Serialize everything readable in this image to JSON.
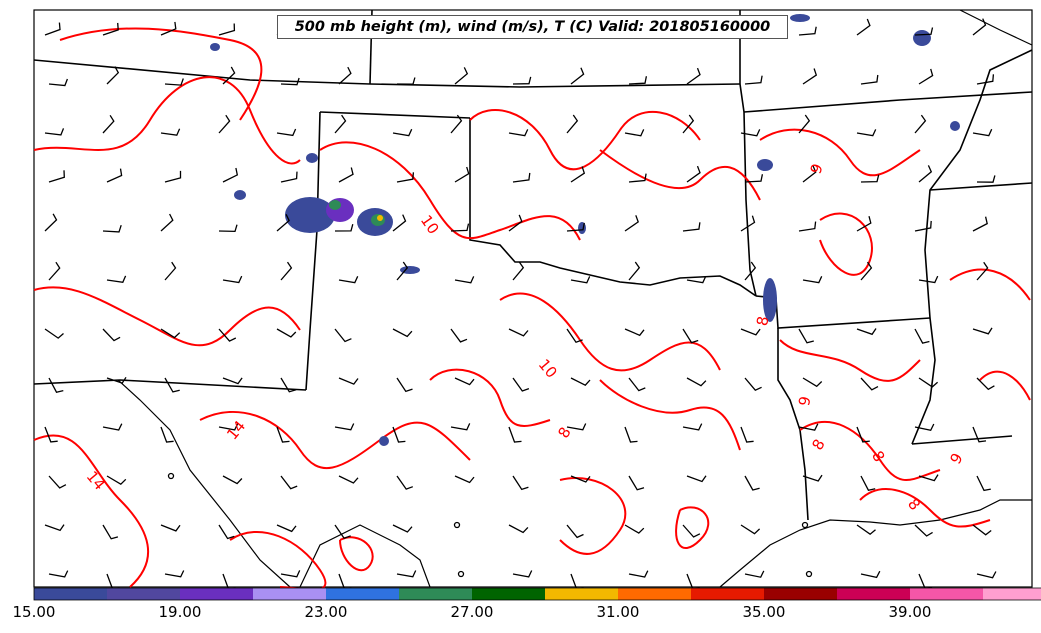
{
  "title": "500 mb height (m), wind (m/s), T (C) Valid: 201805160000",
  "colorbar": {
    "ticks": [
      "15.00",
      "19.00",
      "23.00",
      "27.00",
      "31.00",
      "35.00",
      "39.00"
    ],
    "colors": [
      "#3a4a9a",
      "#51479f",
      "#6a2fbf",
      "#a990f2",
      "#2f72e0",
      "#2e8b57",
      "#006400",
      "#f2b800",
      "#ff6a00",
      "#e61a00",
      "#990000",
      "#cc0055",
      "#f556a8",
      "#ff9fd0"
    ]
  },
  "temperature_contour_color": "#ff0000",
  "contour_labels": [
    "10",
    "10",
    "14",
    "14",
    "9",
    "8",
    "9",
    "9",
    "8",
    "8",
    "8",
    "8"
  ]
}
